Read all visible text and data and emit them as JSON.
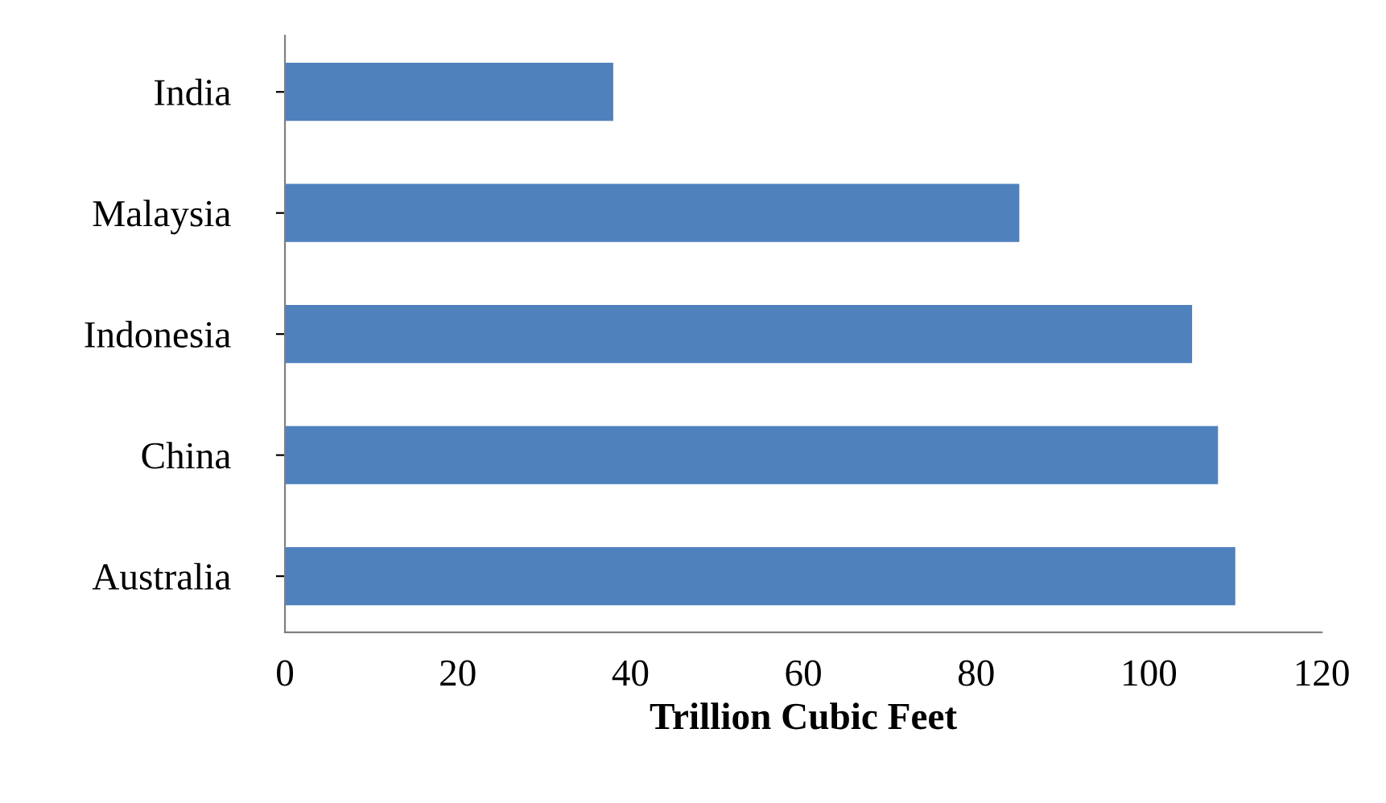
{
  "chart_data": {
    "type": "bar",
    "orientation": "horizontal",
    "xlabel": "Trillion Cubic Feet",
    "categories": [
      "India",
      "Malaysia",
      "Indonesia",
      "China",
      "Australia"
    ],
    "values": [
      38,
      85,
      105,
      108,
      110
    ],
    "color": "#4f81bd",
    "xlim": [
      0,
      120
    ],
    "xticks": [
      0,
      20,
      40,
      60,
      80,
      100,
      120
    ],
    "grid": false
  }
}
